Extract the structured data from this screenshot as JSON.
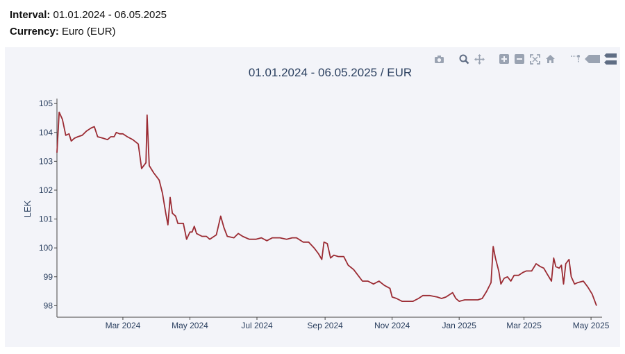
{
  "header": {
    "interval_label": "Interval:",
    "interval_value": " 01.01.2024 - 06.05.2025",
    "currency_label": "Currency:",
    "currency_value": " Euro (EUR)"
  },
  "modebar": {
    "icons": [
      "camera-icon",
      "zoom-icon",
      "pan-icon",
      "zoom-in-icon",
      "zoom-out-icon",
      "autoscale-icon",
      "reset-axes-icon",
      "spike-lines-icon",
      "hover-closest-icon",
      "hover-compare-icon"
    ]
  },
  "colors": {
    "line": "#9b2b33",
    "panel": "#f3f4f9",
    "text": "#2a3f5f"
  },
  "chart_data": {
    "type": "line",
    "title": "01.01.2024 - 06.05.2025 / EUR",
    "xlabel": "",
    "ylabel": "LEK",
    "ylim": [
      97.6,
      105.1
    ],
    "xlim": [
      "2024-01-01",
      "2025-05-06"
    ],
    "yticks": [
      98,
      99,
      100,
      101,
      102,
      103,
      104,
      105
    ],
    "xticks": [
      {
        "date": "2024-03-01",
        "label": "Mar 2024"
      },
      {
        "date": "2024-05-01",
        "label": "May 2024"
      },
      {
        "date": "2024-07-01",
        "label": "Jul 2024"
      },
      {
        "date": "2024-09-01",
        "label": "Sep 2024"
      },
      {
        "date": "2024-11-01",
        "label": "Nov 2024"
      },
      {
        "date": "2025-01-01",
        "label": "Jan 2025"
      },
      {
        "date": "2025-03-01",
        "label": "Mar 2025"
      },
      {
        "date": "2025-05-01",
        "label": "May 2025"
      }
    ],
    "grid": false,
    "series": [
      {
        "points": [
          [
            "2024-01-01",
            103.3
          ],
          [
            "2024-01-03",
            104.7
          ],
          [
            "2024-01-06",
            104.45
          ],
          [
            "2024-01-09",
            103.9
          ],
          [
            "2024-01-12",
            103.95
          ],
          [
            "2024-01-14",
            103.7
          ],
          [
            "2024-01-17",
            103.8
          ],
          [
            "2024-01-20",
            103.85
          ],
          [
            "2024-01-24",
            103.9
          ],
          [
            "2024-01-28",
            104.05
          ],
          [
            "2024-02-01",
            104.15
          ],
          [
            "2024-02-04",
            104.2
          ],
          [
            "2024-02-07",
            103.85
          ],
          [
            "2024-02-12",
            103.8
          ],
          [
            "2024-02-16",
            103.75
          ],
          [
            "2024-02-19",
            103.85
          ],
          [
            "2024-02-22",
            103.85
          ],
          [
            "2024-02-24",
            104.0
          ],
          [
            "2024-02-27",
            103.95
          ],
          [
            "2024-03-01",
            103.95
          ],
          [
            "2024-03-05",
            103.85
          ],
          [
            "2024-03-10",
            103.75
          ],
          [
            "2024-03-15",
            103.6
          ],
          [
            "2024-03-18",
            102.75
          ],
          [
            "2024-03-22",
            102.95
          ],
          [
            "2024-03-23",
            104.6
          ],
          [
            "2024-03-25",
            102.85
          ],
          [
            "2024-03-29",
            102.6
          ],
          [
            "2024-04-03",
            102.35
          ],
          [
            "2024-04-06",
            101.9
          ],
          [
            "2024-04-09",
            101.2
          ],
          [
            "2024-04-11",
            100.8
          ],
          [
            "2024-04-13",
            101.75
          ],
          [
            "2024-04-15",
            101.2
          ],
          [
            "2024-04-18",
            101.1
          ],
          [
            "2024-04-20",
            100.85
          ],
          [
            "2024-04-25",
            100.85
          ],
          [
            "2024-04-28",
            100.3
          ],
          [
            "2024-05-01",
            100.55
          ],
          [
            "2024-05-03",
            100.55
          ],
          [
            "2024-05-05",
            100.75
          ],
          [
            "2024-05-07",
            100.5
          ],
          [
            "2024-05-12",
            100.4
          ],
          [
            "2024-05-16",
            100.4
          ],
          [
            "2024-05-19",
            100.3
          ],
          [
            "2024-05-25",
            100.45
          ],
          [
            "2024-05-29",
            101.1
          ],
          [
            "2024-06-01",
            100.7
          ],
          [
            "2024-06-04",
            100.4
          ],
          [
            "2024-06-10",
            100.35
          ],
          [
            "2024-06-14",
            100.5
          ],
          [
            "2024-06-18",
            100.4
          ],
          [
            "2024-06-24",
            100.3
          ],
          [
            "2024-06-30",
            100.3
          ],
          [
            "2024-07-05",
            100.35
          ],
          [
            "2024-07-10",
            100.25
          ],
          [
            "2024-07-15",
            100.35
          ],
          [
            "2024-07-22",
            100.35
          ],
          [
            "2024-07-28",
            100.3
          ],
          [
            "2024-08-02",
            100.35
          ],
          [
            "2024-08-06",
            100.35
          ],
          [
            "2024-08-12",
            100.2
          ],
          [
            "2024-08-17",
            100.2
          ],
          [
            "2024-08-22",
            100.0
          ],
          [
            "2024-08-26",
            99.8
          ],
          [
            "2024-08-29",
            99.6
          ],
          [
            "2024-08-31",
            100.2
          ],
          [
            "2024-09-03",
            100.15
          ],
          [
            "2024-09-06",
            99.65
          ],
          [
            "2024-09-09",
            99.75
          ],
          [
            "2024-09-13",
            99.7
          ],
          [
            "2024-09-18",
            99.7
          ],
          [
            "2024-09-22",
            99.4
          ],
          [
            "2024-09-27",
            99.25
          ],
          [
            "2024-10-01",
            99.05
          ],
          [
            "2024-10-05",
            98.85
          ],
          [
            "2024-10-10",
            98.85
          ],
          [
            "2024-10-15",
            98.75
          ],
          [
            "2024-10-20",
            98.85
          ],
          [
            "2024-10-25",
            98.7
          ],
          [
            "2024-10-30",
            98.6
          ],
          [
            "2024-11-01",
            98.3
          ],
          [
            "2024-11-05",
            98.25
          ],
          [
            "2024-11-10",
            98.15
          ],
          [
            "2024-11-14",
            98.15
          ],
          [
            "2024-11-20",
            98.15
          ],
          [
            "2024-11-25",
            98.25
          ],
          [
            "2024-11-29",
            98.35
          ],
          [
            "2024-12-05",
            98.35
          ],
          [
            "2024-12-12",
            98.3
          ],
          [
            "2024-12-16",
            98.25
          ],
          [
            "2024-12-20",
            98.3
          ],
          [
            "2024-12-26",
            98.45
          ],
          [
            "2024-12-29",
            98.25
          ],
          [
            "2025-01-01",
            98.15
          ],
          [
            "2025-01-06",
            98.2
          ],
          [
            "2025-01-12",
            98.2
          ],
          [
            "2025-01-18",
            98.2
          ],
          [
            "2025-01-22",
            98.25
          ],
          [
            "2025-01-26",
            98.5
          ],
          [
            "2025-01-30",
            98.8
          ],
          [
            "2025-02-01",
            100.05
          ],
          [
            "2025-02-03",
            99.65
          ],
          [
            "2025-02-06",
            99.2
          ],
          [
            "2025-02-08",
            98.75
          ],
          [
            "2025-02-11",
            98.95
          ],
          [
            "2025-02-14",
            99.0
          ],
          [
            "2025-02-17",
            98.85
          ],
          [
            "2025-02-20",
            99.05
          ],
          [
            "2025-02-24",
            99.05
          ],
          [
            "2025-02-28",
            99.15
          ],
          [
            "2025-03-03",
            99.2
          ],
          [
            "2025-03-08",
            99.2
          ],
          [
            "2025-03-12",
            99.45
          ],
          [
            "2025-03-16",
            99.35
          ],
          [
            "2025-03-19",
            99.3
          ],
          [
            "2025-03-22",
            99.1
          ],
          [
            "2025-03-26",
            98.85
          ],
          [
            "2025-03-28",
            99.65
          ],
          [
            "2025-03-30",
            99.35
          ],
          [
            "2025-04-02",
            99.3
          ],
          [
            "2025-04-04",
            99.4
          ],
          [
            "2025-04-06",
            98.75
          ],
          [
            "2025-04-08",
            99.45
          ],
          [
            "2025-04-11",
            99.6
          ],
          [
            "2025-04-13",
            99.0
          ],
          [
            "2025-04-16",
            98.75
          ],
          [
            "2025-04-19",
            98.8
          ],
          [
            "2025-04-24",
            98.85
          ],
          [
            "2025-04-28",
            98.65
          ],
          [
            "2025-05-02",
            98.4
          ],
          [
            "2025-05-06",
            98.0
          ]
        ]
      }
    ]
  }
}
